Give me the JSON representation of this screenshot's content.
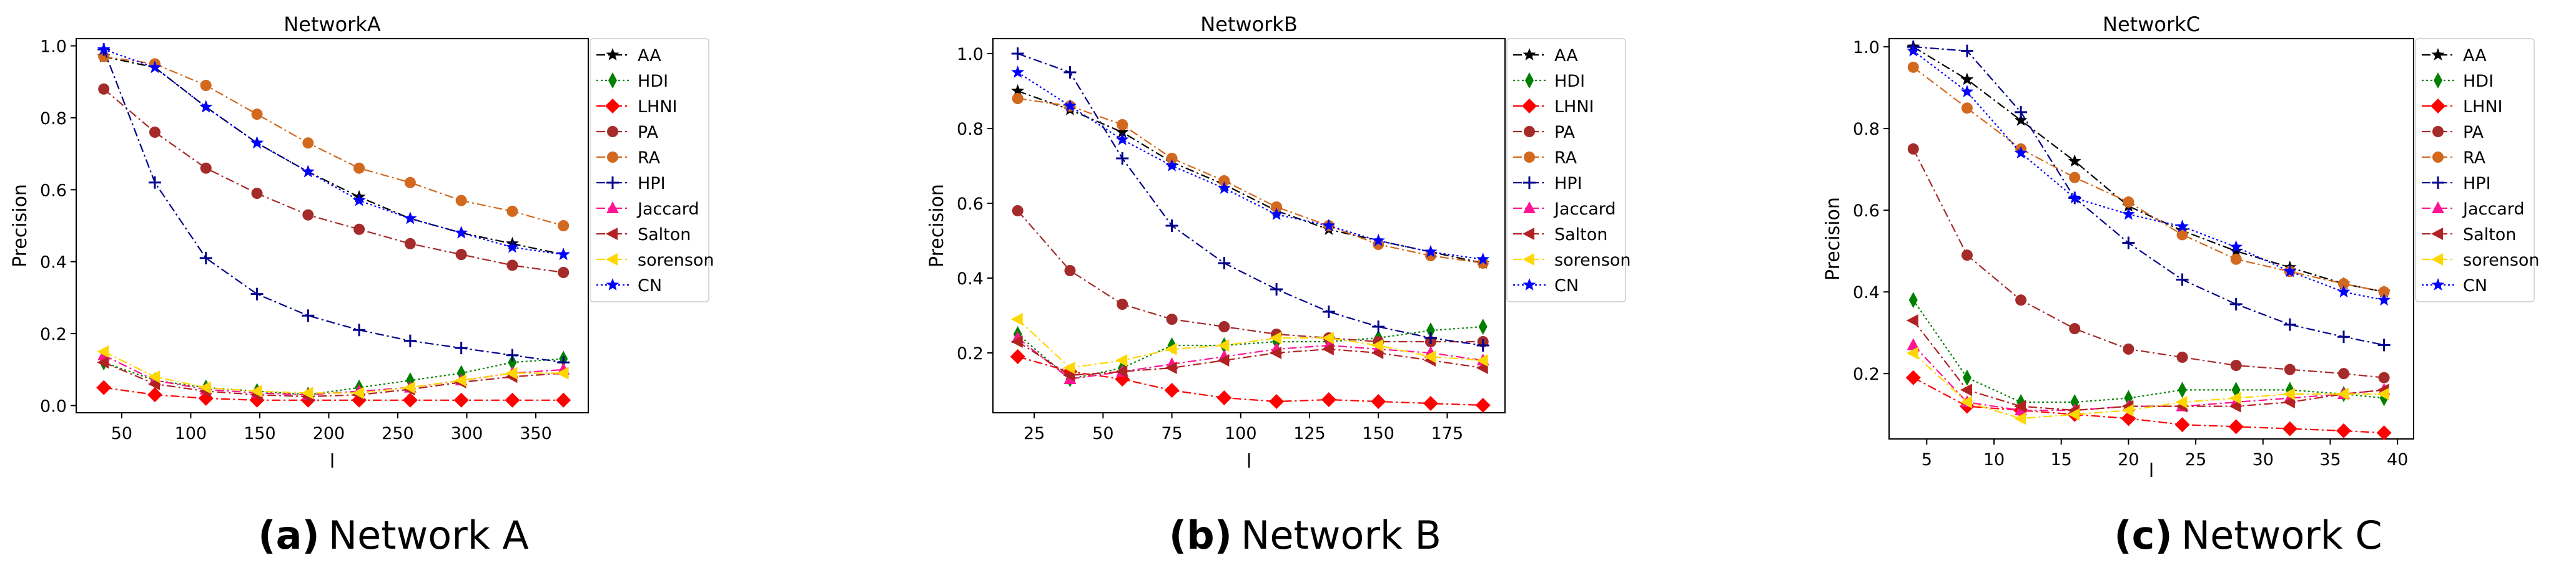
{
  "charts": [
    {
      "caption_letter": "(a)",
      "caption_text": "Network A",
      "chart_data": {
        "type": "line",
        "title": "NetworkA",
        "xlabel": "l",
        "ylabel": "Precision",
        "xlim": [
          17,
          388
        ],
        "ylim": [
          -0.02,
          1.02
        ],
        "xticks": [
          50,
          100,
          150,
          200,
          250,
          300,
          350
        ],
        "xtick_labels": [
          "50",
          "100",
          "150",
          "200",
          "250",
          "300",
          "350"
        ],
        "yticks": [
          0.0,
          0.2,
          0.4,
          0.6,
          0.8,
          1.0
        ],
        "ytick_labels": [
          "0.0",
          "0.2",
          "0.4",
          "0.6",
          "0.8",
          "1.0"
        ],
        "legend_position": "outside-right",
        "x": [
          37,
          74,
          111,
          148,
          185,
          222,
          259,
          296,
          333,
          370
        ],
        "series": [
          {
            "name": "AA",
            "values": [
              0.97,
              0.94,
              0.83,
              0.73,
              0.65,
              0.58,
              0.52,
              0.48,
              0.45,
              0.42
            ]
          },
          {
            "name": "HDI",
            "values": [
              0.12,
              0.07,
              0.05,
              0.04,
              0.03,
              0.05,
              0.07,
              0.09,
              0.12,
              0.13
            ]
          },
          {
            "name": "LHNI",
            "values": [
              0.05,
              0.03,
              0.02,
              0.015,
              0.015,
              0.015,
              0.015,
              0.015,
              0.015,
              0.015
            ]
          },
          {
            "name": "PA",
            "values": [
              0.88,
              0.76,
              0.66,
              0.59,
              0.53,
              0.49,
              0.45,
              0.42,
              0.39,
              0.37
            ]
          },
          {
            "name": "RA",
            "values": [
              0.97,
              0.95,
              0.89,
              0.81,
              0.73,
              0.66,
              0.62,
              0.57,
              0.54,
              0.5
            ]
          },
          {
            "name": "HPI",
            "values": [
              0.99,
              0.62,
              0.41,
              0.31,
              0.25,
              0.21,
              0.18,
              0.16,
              0.14,
              0.12
            ]
          },
          {
            "name": "Jaccard",
            "values": [
              0.14,
              0.07,
              0.045,
              0.035,
              0.03,
              0.04,
              0.05,
              0.07,
              0.09,
              0.1
            ]
          },
          {
            "name": "Salton",
            "values": [
              0.12,
              0.06,
              0.04,
              0.03,
              0.025,
              0.03,
              0.045,
              0.065,
              0.08,
              0.09
            ]
          },
          {
            "name": "sorenson",
            "values": [
              0.15,
              0.08,
              0.05,
              0.04,
              0.035,
              0.035,
              0.05,
              0.07,
              0.09,
              0.09
            ]
          },
          {
            "name": "CN",
            "values": [
              0.99,
              0.94,
              0.83,
              0.73,
              0.65,
              0.57,
              0.52,
              0.48,
              0.44,
              0.42
            ]
          }
        ]
      }
    },
    {
      "caption_letter": "(b)",
      "caption_text": "Network B",
      "chart_data": {
        "type": "line",
        "title": "NetworkB",
        "xlabel": "l",
        "ylabel": "Precision",
        "xlim": [
          10,
          196
        ],
        "ylim": [
          0.04,
          1.04
        ],
        "xticks": [
          25,
          50,
          75,
          100,
          125,
          150,
          175
        ],
        "xtick_labels": [
          "25",
          "50",
          "75",
          "100",
          "125",
          "150",
          "175"
        ],
        "yticks": [
          0.2,
          0.4,
          0.6,
          0.8,
          1.0
        ],
        "ytick_labels": [
          "0.2",
          "0.4",
          "0.6",
          "0.8",
          "1.0"
        ],
        "legend_position": "outside-right",
        "x": [
          19,
          38,
          57,
          75,
          94,
          113,
          132,
          150,
          169,
          188
        ],
        "series": [
          {
            "name": "AA",
            "values": [
              0.9,
              0.85,
              0.79,
              0.71,
              0.65,
              0.58,
              0.53,
              0.5,
              0.47,
              0.44
            ]
          },
          {
            "name": "HDI",
            "values": [
              0.25,
              0.13,
              0.16,
              0.22,
              0.22,
              0.23,
              0.23,
              0.24,
              0.26,
              0.27
            ]
          },
          {
            "name": "LHNI",
            "values": [
              0.19,
              0.15,
              0.13,
              0.1,
              0.08,
              0.07,
              0.075,
              0.07,
              0.065,
              0.06
            ]
          },
          {
            "name": "PA",
            "values": [
              0.58,
              0.42,
              0.33,
              0.29,
              0.27,
              0.25,
              0.24,
              0.23,
              0.23,
              0.23
            ]
          },
          {
            "name": "RA",
            "values": [
              0.88,
              0.86,
              0.81,
              0.72,
              0.66,
              0.59,
              0.54,
              0.49,
              0.46,
              0.44
            ]
          },
          {
            "name": "HPI",
            "values": [
              1.0,
              0.95,
              0.72,
              0.54,
              0.44,
              0.37,
              0.31,
              0.27,
              0.24,
              0.22
            ]
          },
          {
            "name": "Jaccard",
            "values": [
              0.24,
              0.13,
              0.15,
              0.17,
              0.19,
              0.21,
              0.22,
              0.21,
              0.2,
              0.18
            ]
          },
          {
            "name": "Salton",
            "values": [
              0.23,
              0.14,
              0.15,
              0.16,
              0.18,
              0.2,
              0.21,
              0.2,
              0.18,
              0.16
            ]
          },
          {
            "name": "sorenson",
            "values": [
              0.29,
              0.16,
              0.18,
              0.21,
              0.22,
              0.24,
              0.24,
              0.22,
              0.19,
              0.18
            ]
          },
          {
            "name": "CN",
            "values": [
              0.95,
              0.86,
              0.77,
              0.7,
              0.64,
              0.57,
              0.54,
              0.5,
              0.47,
              0.45
            ]
          }
        ]
      }
    },
    {
      "caption_letter": "(c)",
      "caption_text": "Network C",
      "chart_data": {
        "type": "line",
        "title": "NetworkC",
        "xlabel": "l",
        "ylabel": "Precision",
        "xlim": [
          2.2,
          41.2
        ],
        "ylim": [
          0.04,
          1.02
        ],
        "xticks": [
          5,
          10,
          15,
          20,
          25,
          30,
          35,
          40
        ],
        "xtick_labels": [
          "5",
          "10",
          "15",
          "20",
          "25",
          "30",
          "35",
          "40"
        ],
        "yticks": [
          0.2,
          0.4,
          0.6,
          0.8,
          1.0
        ],
        "ytick_labels": [
          "0.2",
          "0.4",
          "0.6",
          "0.8",
          "1.0"
        ],
        "legend_position": "outside-right",
        "x": [
          4,
          8,
          12,
          16,
          20,
          24,
          28,
          32,
          36,
          39
        ],
        "series": [
          {
            "name": "AA",
            "values": [
              1.0,
              0.92,
              0.82,
              0.72,
              0.61,
              0.55,
              0.5,
              0.46,
              0.42,
              0.4
            ]
          },
          {
            "name": "HDI",
            "values": [
              0.38,
              0.19,
              0.13,
              0.13,
              0.14,
              0.16,
              0.16,
              0.16,
              0.15,
              0.14
            ]
          },
          {
            "name": "LHNI",
            "values": [
              0.19,
              0.12,
              0.11,
              0.1,
              0.09,
              0.075,
              0.07,
              0.065,
              0.06,
              0.055
            ]
          },
          {
            "name": "PA",
            "values": [
              0.75,
              0.49,
              0.38,
              0.31,
              0.26,
              0.24,
              0.22,
              0.21,
              0.2,
              0.19
            ]
          },
          {
            "name": "RA",
            "values": [
              0.95,
              0.85,
              0.75,
              0.68,
              0.62,
              0.54,
              0.48,
              0.45,
              0.42,
              0.4
            ]
          },
          {
            "name": "HPI",
            "values": [
              1.0,
              0.99,
              0.84,
              0.63,
              0.52,
              0.43,
              0.37,
              0.32,
              0.29,
              0.27
            ]
          },
          {
            "name": "Jaccard",
            "values": [
              0.27,
              0.13,
              0.11,
              0.11,
              0.12,
              0.12,
              0.13,
              0.14,
              0.15,
              0.16
            ]
          },
          {
            "name": "Salton",
            "values": [
              0.33,
              0.16,
              0.12,
              0.11,
              0.12,
              0.12,
              0.12,
              0.13,
              0.15,
              0.16
            ]
          },
          {
            "name": "sorenson",
            "values": [
              0.25,
              0.13,
              0.09,
              0.1,
              0.11,
              0.13,
              0.14,
              0.15,
              0.15,
              0.15
            ]
          },
          {
            "name": "CN",
            "values": [
              0.99,
              0.89,
              0.74,
              0.63,
              0.59,
              0.56,
              0.51,
              0.45,
              0.4,
              0.38
            ]
          }
        ]
      }
    }
  ],
  "series_styles": [
    {
      "name": "AA",
      "color": "#000000",
      "marker": "star",
      "dash": "dashdot"
    },
    {
      "name": "HDI",
      "color": "#008000",
      "marker": "thin-diamond",
      "dash": "dotted"
    },
    {
      "name": "LHNI",
      "color": "#ff0000",
      "marker": "diamond",
      "dash": "dashdot"
    },
    {
      "name": "PA",
      "color": "#a52a2a",
      "marker": "circle",
      "dash": "dashdot"
    },
    {
      "name": "RA",
      "color": "#d2691e",
      "marker": "circle",
      "dash": "dashdot"
    },
    {
      "name": "HPI",
      "color": "#00008b",
      "marker": "plus",
      "dash": "dashdot"
    },
    {
      "name": "Jaccard",
      "color": "#ff1493",
      "marker": "triangle-up",
      "dash": "dashdot"
    },
    {
      "name": "Salton",
      "color": "#b22222",
      "marker": "triangle-left",
      "dash": "dashdot"
    },
    {
      "name": "sorenson",
      "color": "#ffd700",
      "marker": "triangle-left",
      "dash": "dashdot"
    },
    {
      "name": "CN",
      "color": "#0000ff",
      "marker": "star",
      "dash": "dotted"
    }
  ]
}
